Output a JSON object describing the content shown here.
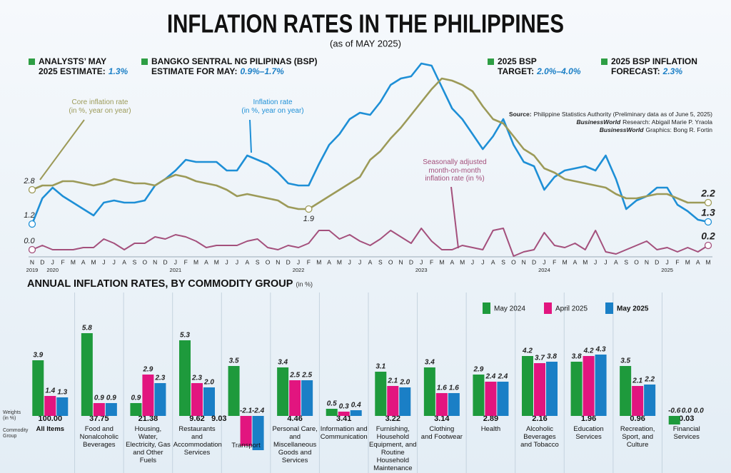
{
  "header": {
    "title": "INFLATION RATES IN THE PHILIPPINES",
    "subtitle": "(as of MAY 2025)",
    "highlights": [
      {
        "label": "ANALYSTS’ MAY\n2025 ESTIMATE:",
        "value": "1.3%"
      },
      {
        "label": "BANGKO SENTRAL NG PILIPINAS (BSP)\nESTIMATE FOR MAY:",
        "value": "0.9%–1.7%"
      },
      {
        "label": "2025 BSP\nTARGET:",
        "value": "2.0%–4.0%"
      },
      {
        "label": "2025 BSP INFLATION\nFORECAST:",
        "value": "2.3%"
      }
    ]
  },
  "source": [
    {
      "label": "Source:",
      "text": "Philippine Statistics Authority (Preliminary data as of June 5, 2025)"
    },
    {
      "label": "BusinessWorld",
      "text": "Research: Abigail Marie P. Yraola"
    },
    {
      "label": "BusinessWorld",
      "text": "Graphics: Bong R. Fortin"
    }
  ],
  "chart_data": [
    {
      "type": "line",
      "categories": [
        "N",
        "D",
        "J",
        "F",
        "M",
        "A",
        "M",
        "J",
        "J",
        "A",
        "S",
        "O",
        "N",
        "D",
        "J",
        "F",
        "M",
        "A",
        "M",
        "J",
        "J",
        "A",
        "S",
        "O",
        "N",
        "D",
        "J",
        "F",
        "M",
        "A",
        "M",
        "J",
        "J",
        "A",
        "S",
        "O",
        "N",
        "D",
        "J",
        "F",
        "M",
        "A",
        "M",
        "J",
        "J",
        "A",
        "S",
        "O",
        "N",
        "D",
        "J",
        "F",
        "M",
        "A",
        "M",
        "J",
        "J",
        "A",
        "S",
        "O",
        "N",
        "D",
        "J",
        "F",
        "M",
        "A",
        "M"
      ],
      "category_years": [
        "2019",
        null,
        "2020",
        null,
        null,
        null,
        null,
        null,
        null,
        null,
        null,
        null,
        null,
        null,
        "2021",
        null,
        null,
        null,
        null,
        null,
        null,
        null,
        null,
        null,
        null,
        null,
        "2022",
        null,
        null,
        null,
        null,
        null,
        null,
        null,
        null,
        null,
        null,
        null,
        "2023",
        null,
        null,
        null,
        null,
        null,
        null,
        null,
        null,
        null,
        null,
        null,
        "2024",
        null,
        null,
        null,
        null,
        null,
        null,
        null,
        null,
        null,
        null,
        null,
        "2025",
        null,
        null,
        null,
        null
      ],
      "ylim": [
        -0.5,
        8.8
      ],
      "series": [
        {
          "name": "Inflation rate\n(in %, year on year)",
          "color": "#1e8fd6",
          "values": [
            1.2,
            2.4,
            2.9,
            2.5,
            2.2,
            1.9,
            1.6,
            2.2,
            2.3,
            2.2,
            2.2,
            2.3,
            3.0,
            3.3,
            3.7,
            4.2,
            4.1,
            4.1,
            4.1,
            3.7,
            3.7,
            4.4,
            4.2,
            4.0,
            3.6,
            3.1,
            3.0,
            3.0,
            4.0,
            4.9,
            5.4,
            6.1,
            6.4,
            6.3,
            6.9,
            7.7,
            8.0,
            8.1,
            8.7,
            8.6,
            7.6,
            6.6,
            6.1,
            5.4,
            4.7,
            5.3,
            6.1,
            4.9,
            4.1,
            3.9,
            2.8,
            3.4,
            3.7,
            3.8,
            3.9,
            3.7,
            4.4,
            3.3,
            1.9,
            2.3,
            2.5,
            2.9,
            2.9,
            2.1,
            1.8,
            1.4,
            1.3
          ],
          "value_labels": [
            "1.2",
            null,
            null,
            null,
            null,
            null,
            null,
            null,
            null,
            null,
            null,
            null,
            null,
            null,
            null,
            null,
            null,
            null,
            null,
            null,
            null,
            null,
            null,
            null,
            null,
            null,
            null,
            null,
            null,
            null,
            null,
            null,
            null,
            null,
            null,
            null,
            null,
            null,
            null,
            null,
            null,
            null,
            null,
            null,
            null,
            null,
            null,
            null,
            null,
            null,
            null,
            null,
            null,
            null,
            null,
            null,
            null,
            null,
            null,
            null,
            null,
            null,
            null,
            null,
            null,
            null,
            "1.3"
          ]
        },
        {
          "name": "Core inflation rate\n(in %, year on year)",
          "color": "#9c9a58",
          "values": [
            2.8,
            3.0,
            3.0,
            3.2,
            3.2,
            3.1,
            3.0,
            3.1,
            3.3,
            3.2,
            3.1,
            3.1,
            3.0,
            3.3,
            3.5,
            3.4,
            3.2,
            3.1,
            3.0,
            2.8,
            2.5,
            2.6,
            2.5,
            2.4,
            2.3,
            2.0,
            1.9,
            1.9,
            2.2,
            2.5,
            2.8,
            3.1,
            3.4,
            4.2,
            4.6,
            5.2,
            5.7,
            6.3,
            6.9,
            7.5,
            8.0,
            7.9,
            7.7,
            7.4,
            6.7,
            6.1,
            5.9,
            5.3,
            4.7,
            4.4,
            3.8,
            3.6,
            3.3,
            3.2,
            3.1,
            3.0,
            2.9,
            2.6,
            2.4,
            2.4,
            2.5,
            2.6,
            2.6,
            2.4,
            2.2,
            2.2,
            2.2
          ],
          "value_labels": [
            "2.8",
            null,
            null,
            null,
            null,
            null,
            null,
            null,
            null,
            null,
            null,
            null,
            null,
            null,
            null,
            null,
            null,
            null,
            null,
            null,
            null,
            null,
            null,
            null,
            null,
            null,
            null,
            "1.9",
            null,
            null,
            null,
            null,
            null,
            null,
            null,
            null,
            null,
            null,
            null,
            null,
            null,
            null,
            null,
            null,
            null,
            null,
            null,
            null,
            null,
            null,
            null,
            null,
            null,
            null,
            null,
            null,
            null,
            null,
            null,
            null,
            null,
            null,
            null,
            null,
            null,
            null,
            "2.2"
          ]
        },
        {
          "name": "Seasonally adjusted\nmonth-on-month\ninflation rate (in %)",
          "color": "#a4507c",
          "values": [
            0.0,
            0.2,
            0.0,
            0.0,
            0.0,
            0.1,
            0.1,
            0.5,
            0.3,
            0.0,
            0.3,
            0.3,
            0.6,
            0.5,
            0.7,
            0.6,
            0.4,
            0.1,
            0.2,
            0.2,
            0.2,
            0.4,
            0.5,
            0.1,
            0.0,
            0.2,
            0.1,
            0.3,
            0.9,
            0.9,
            0.5,
            0.7,
            0.4,
            0.2,
            0.5,
            0.9,
            0.6,
            0.3,
            1.0,
            0.4,
            0.0,
            0.0,
            0.2,
            0.1,
            0.0,
            0.9,
            1.0,
            -0.3,
            -0.1,
            0.0,
            0.8,
            0.2,
            0.1,
            0.3,
            0.0,
            0.9,
            -0.1,
            -0.2,
            0.0,
            0.2,
            0.4,
            0.0,
            0.1,
            -0.1,
            0.1,
            -0.1,
            0.2
          ],
          "value_labels": [
            "0.0",
            null,
            null,
            null,
            null,
            null,
            null,
            null,
            null,
            null,
            null,
            null,
            null,
            null,
            null,
            null,
            null,
            null,
            null,
            null,
            null,
            null,
            null,
            null,
            null,
            null,
            null,
            null,
            null,
            null,
            null,
            null,
            null,
            null,
            null,
            null,
            null,
            null,
            null,
            null,
            null,
            null,
            null,
            null,
            null,
            null,
            null,
            null,
            null,
            null,
            null,
            null,
            null,
            null,
            null,
            null,
            null,
            null,
            null,
            null,
            null,
            null,
            null,
            null,
            null,
            null,
            "0.2"
          ]
        }
      ]
    },
    {
      "type": "bar",
      "title": "ANNUAL INFLATION RATES, BY COMMODITY GROUP",
      "title_unit": "(in %)",
      "weights_label": "Weights\n(in %)",
      "categories_label": "Commodity\nGroup",
      "categories": [
        "All Items",
        "Food and\nNonalcoholic\nBeverages",
        "Housing, Water,\nElectricity, Gas\nand Other Fuels",
        "Restaurants and\nAccommodation\nServices",
        "Transport",
        "Personal Care,\nand Miscellaneous\nGoods and\nServices",
        "Information and\nCommunication",
        "Furnishing,\nHousehold\nEquipment, and\nRoutine Household\nMaintenance",
        "Clothing\nand Footwear",
        "Health",
        "Alcoholic\nBeverages\nand Tobacco",
        "Education\nServices",
        "Recreation,\nSport, and\nCulture",
        "Financial\nServices"
      ],
      "weights": [
        "100.00",
        "37.75",
        "21.38",
        "9.62",
        "9.03",
        "4.46",
        "3.41",
        "3.22",
        "3.14",
        "2.89",
        "2.16",
        "1.96",
        "0.96",
        "0.03"
      ],
      "ylim": [
        -2.5,
        6
      ],
      "legend": "top-right",
      "separators": true,
      "series": [
        {
          "name": "May 2024",
          "color": "#1e9a3c",
          "values": [
            3.9,
            5.8,
            0.9,
            5.3,
            3.5,
            3.4,
            0.5,
            3.1,
            3.4,
            2.9,
            4.2,
            3.8,
            3.5,
            -0.6
          ]
        },
        {
          "name": "April 2025",
          "color": "#e2157f",
          "values": [
            1.4,
            0.9,
            2.9,
            2.3,
            -2.1,
            2.5,
            0.3,
            2.1,
            1.6,
            2.4,
            3.7,
            4.2,
            2.1,
            0.0
          ],
          "value_labels": [
            "1.4",
            "0.9",
            "2.9",
            "2.3",
            "-2.1",
            "2.5",
            "0.3",
            "2.1",
            "1.6",
            "2.4",
            "3.7",
            "4.2",
            "2.1",
            "0.0"
          ]
        },
        {
          "name": "May 2025",
          "color": "#1a7fc6",
          "values": [
            1.3,
            0.9,
            2.3,
            2.0,
            -2.4,
            2.5,
            0.4,
            2.0,
            1.6,
            2.4,
            3.8,
            4.3,
            2.2,
            0.0
          ],
          "value_labels": [
            "1.3",
            "0.9",
            "2.3",
            "2.0",
            "-2.4",
            "2.5",
            "0.4",
            "2.0",
            "1.6",
            "2.4",
            "3.8",
            "4.3",
            "2.2",
            "0.0"
          ]
        }
      ]
    }
  ]
}
